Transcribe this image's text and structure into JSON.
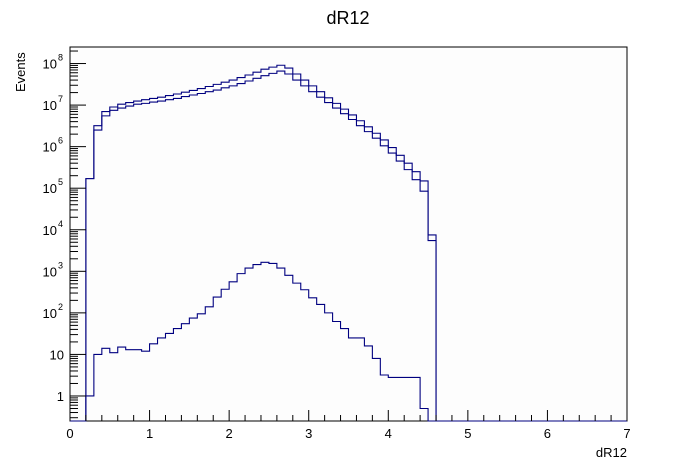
{
  "chart_data": {
    "type": "histogram",
    "title": "dR12",
    "xlabel": "dR12",
    "ylabel": "Events",
    "xlim": [
      0,
      7
    ],
    "ylim": [
      0.25,
      250000000
    ],
    "log_y": true,
    "grid": false,
    "legend": "none",
    "line_color": "#000080",
    "x_ticks": [
      {
        "value": 0,
        "label": "0"
      },
      {
        "value": 1,
        "label": "1"
      },
      {
        "value": 2,
        "label": "2"
      },
      {
        "value": 3,
        "label": "3"
      },
      {
        "value": 4,
        "label": "4"
      },
      {
        "value": 5,
        "label": "5"
      },
      {
        "value": 6,
        "label": "6"
      },
      {
        "value": 7,
        "label": "7"
      }
    ],
    "y_ticks": [
      {
        "value": 1,
        "base": "1",
        "exp": ""
      },
      {
        "value": 10,
        "base": "10",
        "exp": ""
      },
      {
        "value": 100,
        "base": "10",
        "exp": "2"
      },
      {
        "value": 1000,
        "base": "10",
        "exp": "3"
      },
      {
        "value": 10000,
        "base": "10",
        "exp": "4"
      },
      {
        "value": 100000,
        "base": "10",
        "exp": "5"
      },
      {
        "value": 1000000,
        "base": "10",
        "exp": "6"
      },
      {
        "value": 10000000,
        "base": "10",
        "exp": "7"
      },
      {
        "value": 100000000,
        "base": "10",
        "exp": "8"
      }
    ],
    "bin_edges_start": 0,
    "bin_width": 0.1,
    "series": [
      {
        "values": [
          0,
          0,
          170000,
          2500000,
          5500000,
          7500000,
          8500000,
          9500000,
          10500000,
          11000000,
          11800000,
          12500000,
          13500000,
          14500000,
          16000000,
          17500000,
          19000000,
          21000000,
          23000000,
          26000000,
          29000000,
          33000000,
          38000000,
          44000000,
          51000000,
          58000000,
          66000000,
          56000000,
          40000000,
          29000000,
          21000000,
          15500000,
          11500000,
          8500000,
          6200000,
          4500000,
          3200000,
          2300000,
          1600000,
          1050000,
          700000,
          450000,
          280000,
          160000,
          85000,
          5500,
          0,
          0,
          0,
          0,
          0,
          0,
          0,
          0,
          0,
          0,
          0,
          0,
          0,
          0,
          0,
          0,
          0,
          0,
          0,
          0,
          0,
          0,
          0,
          0
        ]
      },
      {
        "values": [
          0,
          0,
          170000,
          3200000,
          7000000,
          9000000,
          10500000,
          11500000,
          12500000,
          13500000,
          14500000,
          15500000,
          17000000,
          18500000,
          20500000,
          22500000,
          25000000,
          28000000,
          31500000,
          35500000,
          40000000,
          46000000,
          53000000,
          62000000,
          73000000,
          82000000,
          91000000,
          78000000,
          56000000,
          40000000,
          29000000,
          21000000,
          15000000,
          11000000,
          8000000,
          5800000,
          4200000,
          3000000,
          2100000,
          1450000,
          950000,
          620000,
          400000,
          250000,
          150000,
          7500,
          0,
          0,
          0,
          0,
          0,
          0,
          0,
          0,
          0,
          0,
          0,
          0,
          0,
          0,
          0,
          0,
          0,
          0,
          0,
          0,
          0,
          0,
          0,
          0
        ]
      },
      {
        "values": [
          0,
          0,
          1,
          10,
          14,
          11,
          15,
          13,
          13,
          12,
          18,
          25,
          32,
          42,
          55,
          75,
          95,
          140,
          240,
          370,
          560,
          880,
          1200,
          1450,
          1650,
          1550,
          1200,
          800,
          520,
          360,
          230,
          160,
          100,
          62,
          42,
          25,
          25,
          16,
          8,
          3.2,
          2.8,
          2.8,
          2.8,
          2.8,
          0.5,
          0,
          0,
          0,
          0,
          0,
          0,
          0,
          0,
          0,
          0,
          0,
          0,
          0,
          0,
          0,
          0,
          0,
          0,
          0,
          0,
          0,
          0,
          0,
          0,
          0
        ]
      }
    ]
  }
}
